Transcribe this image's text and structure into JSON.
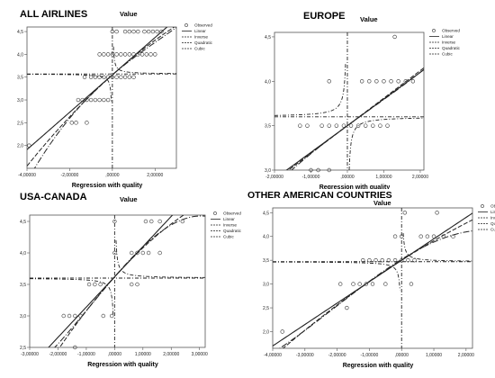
{
  "chart_data": [
    {
      "type": "scatter",
      "title": "ALL AIRLINES",
      "ylabel": "Value",
      "xlabel": "Regression with quality",
      "xlim": [
        -4,
        3
      ],
      "ylim": [
        1.5,
        4.6
      ],
      "x_ticks": [
        -4,
        -2,
        0,
        2
      ],
      "x_tick_labels": [
        "-4,00000",
        "-2,00000",
        ",00000",
        "2,00000"
      ],
      "y_ticks": [
        2.0,
        2.5,
        3.0,
        3.5,
        4.0,
        4.5
      ],
      "y_tick_labels": [
        "2,0",
        "2,5",
        "3,0",
        "3,5",
        "4,0",
        "4,5"
      ],
      "legend": [
        "Observed",
        "Linear",
        "Inverse",
        "Quadratic",
        "Cubic"
      ],
      "legend_position": "top-right",
      "observed": [
        {
          "x": -3.9,
          "y": 2.0
        },
        {
          "x": -1.9,
          "y": 2.5
        },
        {
          "x": -1.7,
          "y": 2.5
        },
        {
          "x": -1.2,
          "y": 2.5
        },
        {
          "x": -1.6,
          "y": 3.0
        },
        {
          "x": -1.4,
          "y": 3.0
        },
        {
          "x": -1.2,
          "y": 3.0
        },
        {
          "x": -1.0,
          "y": 3.0
        },
        {
          "x": -0.8,
          "y": 3.0
        },
        {
          "x": -0.6,
          "y": 3.0
        },
        {
          "x": -0.4,
          "y": 3.0
        },
        {
          "x": -0.2,
          "y": 3.0
        },
        {
          "x": -1.3,
          "y": 3.5
        },
        {
          "x": -1.0,
          "y": 3.5
        },
        {
          "x": -0.8,
          "y": 3.5
        },
        {
          "x": -0.6,
          "y": 3.5
        },
        {
          "x": -0.4,
          "y": 3.5
        },
        {
          "x": -0.2,
          "y": 3.5
        },
        {
          "x": 0.0,
          "y": 3.5
        },
        {
          "x": 0.2,
          "y": 3.5
        },
        {
          "x": 0.4,
          "y": 3.5
        },
        {
          "x": 0.6,
          "y": 3.5
        },
        {
          "x": 0.8,
          "y": 3.5
        },
        {
          "x": 1.0,
          "y": 3.5
        },
        {
          "x": -0.6,
          "y": 4.0
        },
        {
          "x": -0.4,
          "y": 4.0
        },
        {
          "x": -0.2,
          "y": 4.0
        },
        {
          "x": 0.0,
          "y": 4.0
        },
        {
          "x": 0.2,
          "y": 4.0
        },
        {
          "x": 0.4,
          "y": 4.0
        },
        {
          "x": 0.6,
          "y": 4.0
        },
        {
          "x": 0.8,
          "y": 4.0
        },
        {
          "x": 1.0,
          "y": 4.0
        },
        {
          "x": 1.2,
          "y": 4.0
        },
        {
          "x": 1.4,
          "y": 4.0
        },
        {
          "x": 1.6,
          "y": 4.0
        },
        {
          "x": 1.8,
          "y": 4.0
        },
        {
          "x": 2.0,
          "y": 4.0
        },
        {
          "x": 0.0,
          "y": 4.5
        },
        {
          "x": 0.2,
          "y": 4.5
        },
        {
          "x": 0.6,
          "y": 4.5
        },
        {
          "x": 0.8,
          "y": 4.5
        },
        {
          "x": 1.0,
          "y": 4.5
        },
        {
          "x": 1.2,
          "y": 4.5
        },
        {
          "x": 1.5,
          "y": 4.5
        },
        {
          "x": 1.7,
          "y": 4.5
        },
        {
          "x": 1.9,
          "y": 4.5
        },
        {
          "x": 2.1,
          "y": 4.5
        },
        {
          "x": 2.3,
          "y": 4.5
        }
      ],
      "fits": {
        "linear": {
          "a": 3.55,
          "b": 0.41
        },
        "quadratic": {
          "a": 3.55,
          "b": 0.42,
          "c": -0.02
        },
        "cubic": {
          "a": 3.55,
          "b": 0.4,
          "c": -0.03,
          "d": 0.004
        },
        "inverse_asymptote": 3.57,
        "inverse_pole": 0.0
      }
    },
    {
      "type": "scatter",
      "title": "EUROPE",
      "ylabel": "Value",
      "xlabel": "Regression with quality",
      "xlim": [
        -2,
        2.1
      ],
      "ylim": [
        3.0,
        4.55
      ],
      "x_ticks": [
        -2,
        -1,
        0,
        1,
        2
      ],
      "x_tick_labels": [
        "-2,00000",
        "-1,00000",
        ",00000",
        "1,00000",
        "2,00000"
      ],
      "y_ticks": [
        3.0,
        3.5,
        4.0,
        4.5
      ],
      "y_tick_labels": [
        "3,0",
        "3,5",
        "4,0",
        "4,5"
      ],
      "legend": [
        "Observed",
        "Linear",
        "Inverse",
        "Quadratic",
        "Cubic"
      ],
      "legend_position": "top-right",
      "observed": [
        {
          "x": -1.0,
          "y": 3.0
        },
        {
          "x": -0.8,
          "y": 3.0
        },
        {
          "x": -0.5,
          "y": 3.0
        },
        {
          "x": -1.3,
          "y": 3.5
        },
        {
          "x": -1.1,
          "y": 3.5
        },
        {
          "x": -0.7,
          "y": 3.5
        },
        {
          "x": -0.5,
          "y": 3.5
        },
        {
          "x": -0.3,
          "y": 3.5
        },
        {
          "x": -0.1,
          "y": 3.5
        },
        {
          "x": 0.1,
          "y": 3.5
        },
        {
          "x": 0.3,
          "y": 3.5
        },
        {
          "x": 0.5,
          "y": 3.5
        },
        {
          "x": 0.7,
          "y": 3.5
        },
        {
          "x": 0.9,
          "y": 3.5
        },
        {
          "x": 1.1,
          "y": 3.5
        },
        {
          "x": -0.5,
          "y": 4.0
        },
        {
          "x": 0.4,
          "y": 4.0
        },
        {
          "x": 0.6,
          "y": 4.0
        },
        {
          "x": 0.8,
          "y": 4.0
        },
        {
          "x": 1.0,
          "y": 4.0
        },
        {
          "x": 1.2,
          "y": 4.0
        },
        {
          "x": 1.4,
          "y": 4.0
        },
        {
          "x": 1.6,
          "y": 4.0
        },
        {
          "x": 1.8,
          "y": 4.0
        },
        {
          "x": 1.3,
          "y": 4.5
        }
      ],
      "fits": {
        "linear": {
          "a": 3.5,
          "b": 0.3
        },
        "quadratic": {
          "a": 3.5,
          "b": 0.31,
          "c": 0.0
        },
        "cubic": {
          "a": 3.5,
          "b": 0.3,
          "c": -0.01,
          "d": 0.005
        },
        "inverse_asymptote": 3.6,
        "inverse_pole": 0.0
      }
    },
    {
      "type": "scatter",
      "title": "USA-CANADA",
      "ylabel": "Value",
      "xlabel": "Regression with quality",
      "xlim": [
        -3,
        3.2
      ],
      "ylim": [
        2.5,
        4.6
      ],
      "x_ticks": [
        -3,
        -2,
        -1,
        0,
        1,
        2,
        3
      ],
      "x_tick_labels": [
        "-3,00000",
        "-2,00000",
        "-1,00000",
        ",00000",
        "1,00000",
        "2,00000",
        "3,00000"
      ],
      "y_ticks": [
        2.5,
        3.0,
        3.5,
        4.0,
        4.5
      ],
      "y_tick_labels": [
        "2,5",
        "3,0",
        "3,5",
        "4,0",
        "4,5"
      ],
      "legend": [
        "Observed",
        "Linear",
        "Inverse",
        "Quadratic",
        "Cubic"
      ],
      "legend_position": "top-right",
      "observed": [
        {
          "x": -1.4,
          "y": 2.5
        },
        {
          "x": -1.8,
          "y": 3.0
        },
        {
          "x": -1.6,
          "y": 3.0
        },
        {
          "x": -1.4,
          "y": 3.0
        },
        {
          "x": -1.2,
          "y": 3.0
        },
        {
          "x": -0.4,
          "y": 3.0
        },
        {
          "x": -0.1,
          "y": 3.0
        },
        {
          "x": -0.9,
          "y": 3.5
        },
        {
          "x": -0.7,
          "y": 3.5
        },
        {
          "x": -0.5,
          "y": 3.5
        },
        {
          "x": 0.6,
          "y": 3.5
        },
        {
          "x": 0.8,
          "y": 3.5
        },
        {
          "x": 0.0,
          "y": 4.0
        },
        {
          "x": 0.6,
          "y": 4.0
        },
        {
          "x": 0.8,
          "y": 4.0
        },
        {
          "x": 1.0,
          "y": 4.0
        },
        {
          "x": 1.2,
          "y": 4.0
        },
        {
          "x": 1.6,
          "y": 4.0
        },
        {
          "x": 0.0,
          "y": 4.5
        },
        {
          "x": 1.1,
          "y": 4.5
        },
        {
          "x": 1.3,
          "y": 4.5
        },
        {
          "x": 1.6,
          "y": 4.5
        },
        {
          "x": 2.4,
          "y": 4.5
        }
      ],
      "fits": {
        "linear": {
          "a": 3.62,
          "b": 0.48
        },
        "quadratic": {
          "a": 3.62,
          "b": 0.5,
          "c": -0.04
        },
        "cubic": {
          "a": 3.62,
          "b": 0.52,
          "c": -0.03,
          "d": -0.012
        },
        "inverse_asymptote": 3.6,
        "inverse_pole": 0.0
      }
    },
    {
      "type": "scatter",
      "title": "OTHER AMERICAN COUNTRIES",
      "ylabel": "Value",
      "xlabel": "Regression with quality",
      "xlim": [
        -4,
        2.2
      ],
      "ylim": [
        1.65,
        4.6
      ],
      "x_ticks": [
        -4,
        -3,
        -2,
        -1,
        0,
        1,
        2
      ],
      "x_tick_labels": [
        "-4,00000",
        "-3,00000",
        "-2,00000",
        "-1,00000",
        ",00000",
        "1,00000",
        "2,00000"
      ],
      "y_ticks": [
        2.0,
        2.5,
        3.0,
        3.5,
        4.0,
        4.5
      ],
      "y_tick_labels": [
        "2,0",
        "2,5",
        "3,0",
        "3,5",
        "4,0",
        "4,5"
      ],
      "legend": [
        "Observed",
        "Linear",
        "Inverse",
        "Quadratic",
        "Cubic"
      ],
      "legend_position": "top-right",
      "observed": [
        {
          "x": -3.7,
          "y": 2.0
        },
        {
          "x": -1.7,
          "y": 2.5
        },
        {
          "x": -1.9,
          "y": 3.0
        },
        {
          "x": -1.5,
          "y": 3.0
        },
        {
          "x": -1.3,
          "y": 3.0
        },
        {
          "x": -1.1,
          "y": 3.0
        },
        {
          "x": -0.9,
          "y": 3.0
        },
        {
          "x": -0.5,
          "y": 3.0
        },
        {
          "x": 0.3,
          "y": 3.0
        },
        {
          "x": -1.2,
          "y": 3.5
        },
        {
          "x": -1.0,
          "y": 3.5
        },
        {
          "x": -0.8,
          "y": 3.5
        },
        {
          "x": -0.6,
          "y": 3.5
        },
        {
          "x": -0.4,
          "y": 3.5
        },
        {
          "x": -0.2,
          "y": 3.5
        },
        {
          "x": 0.0,
          "y": 3.5
        },
        {
          "x": 0.2,
          "y": 3.5
        },
        {
          "x": 0.4,
          "y": 3.5
        },
        {
          "x": -0.2,
          "y": 4.0
        },
        {
          "x": 0.0,
          "y": 4.0
        },
        {
          "x": 0.6,
          "y": 4.0
        },
        {
          "x": 0.8,
          "y": 4.0
        },
        {
          "x": 1.0,
          "y": 4.0
        },
        {
          "x": 1.3,
          "y": 4.0
        },
        {
          "x": 1.6,
          "y": 4.0
        },
        {
          "x": 0.1,
          "y": 4.5
        },
        {
          "x": 1.1,
          "y": 4.5
        }
      ],
      "fits": {
        "linear": {
          "a": 3.5,
          "b": 0.45
        },
        "quadratic": {
          "a": 3.5,
          "b": 0.43,
          "c": -0.02
        },
        "cubic": {
          "a": 3.52,
          "b": 0.42,
          "c": -0.05,
          "d": -0.008
        },
        "inverse_asymptote": 3.47,
        "inverse_pole": 0.0
      }
    }
  ]
}
